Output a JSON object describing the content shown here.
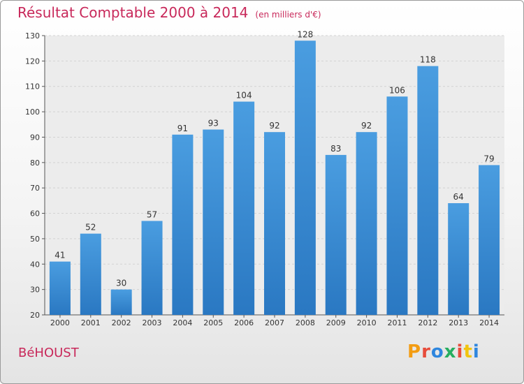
{
  "header": {
    "title": "Résultat Comptable 2000 à 2014",
    "subtitle": "(en milliers d'€)"
  },
  "footer": {
    "commune": "BéHOUST",
    "logo_text": "Proxiti",
    "logo_colors": [
      "#f39c12",
      "#e74c3c",
      "#2e86de",
      "#27ae60",
      "#e74c3c",
      "#f1c40f",
      "#2e86de"
    ]
  },
  "colors": {
    "bar": "#4a9de0",
    "bar_dark": "#2a78c2",
    "title": "#c8285a"
  },
  "chart_data": {
    "type": "bar",
    "title": "Résultat Comptable 2000 à 2014",
    "subtitle": "(en milliers d'€)",
    "categories": [
      "2000",
      "2001",
      "2002",
      "2003",
      "2004",
      "2005",
      "2006",
      "2007",
      "2008",
      "2009",
      "2010",
      "2011",
      "2012",
      "2013",
      "2014"
    ],
    "values": [
      41,
      52,
      30,
      57,
      91,
      93,
      104,
      92,
      128,
      83,
      92,
      106,
      118,
      64,
      79
    ],
    "ylim": [
      20,
      130
    ],
    "yticks": [
      20,
      30,
      40,
      50,
      60,
      70,
      80,
      90,
      100,
      110,
      120,
      130
    ],
    "grid": true,
    "data_labels": true
  }
}
